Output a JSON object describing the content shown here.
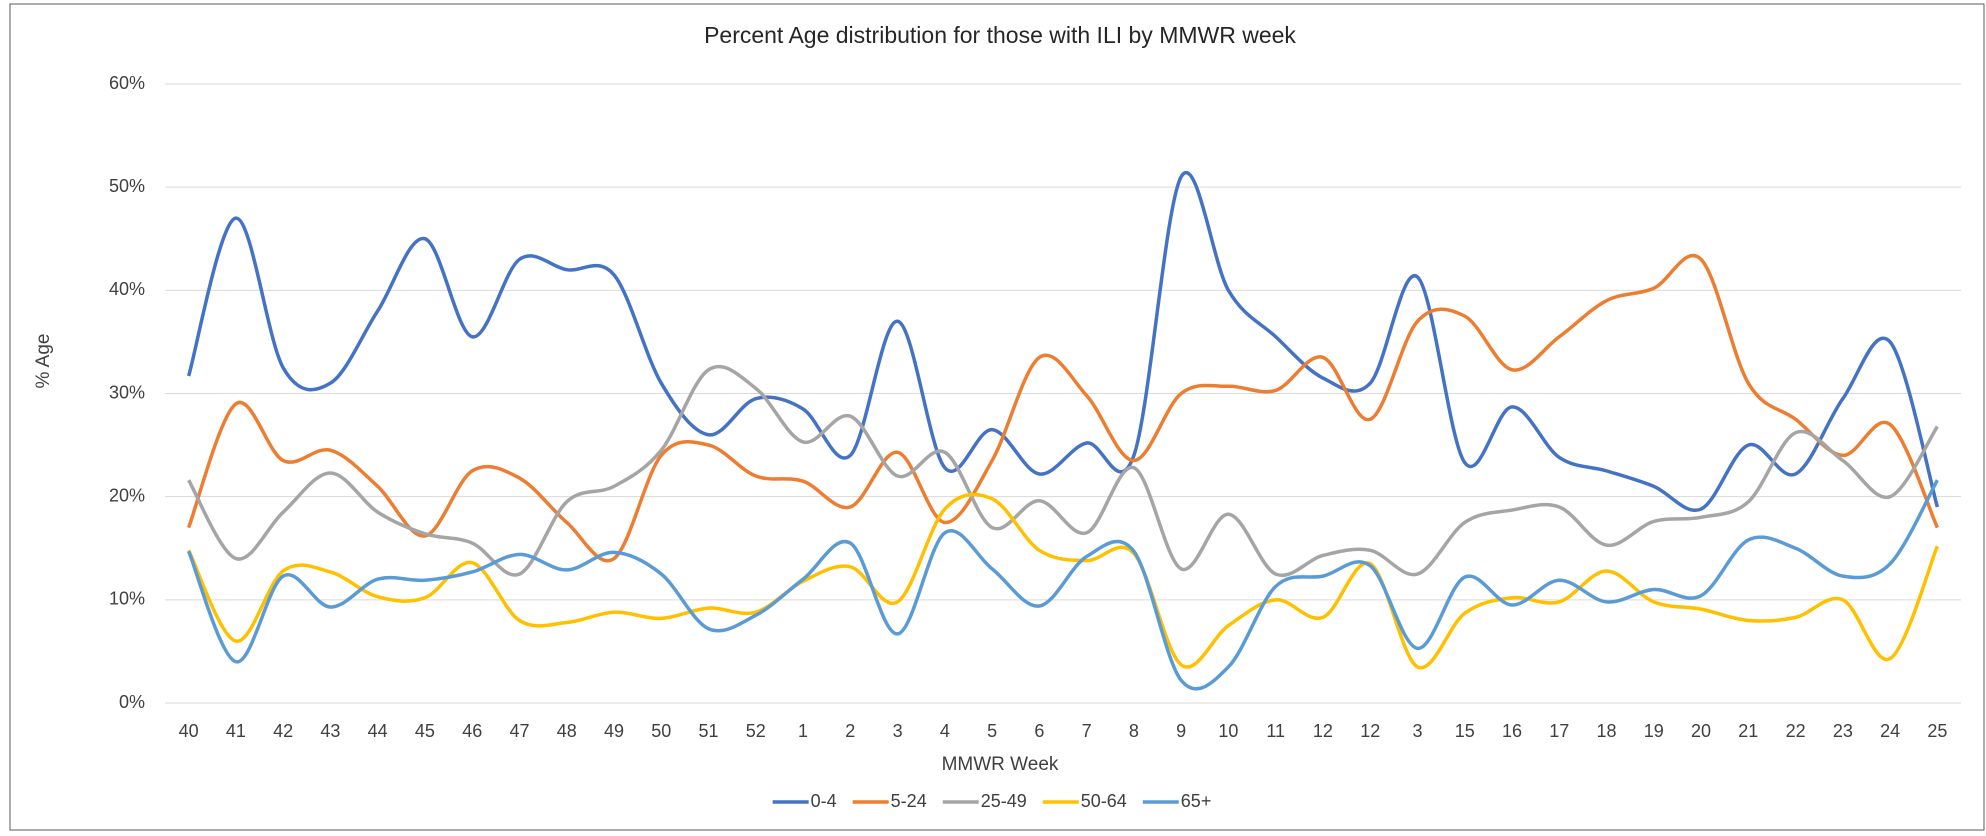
{
  "chart_data": {
    "type": "line",
    "title": "Percent Age distribution for those with ILI by MMWR week",
    "x_label": "MMWR Week",
    "y_label": "% Age",
    "categories": [
      "40",
      "41",
      "42",
      "43",
      "44",
      "45",
      "46",
      "47",
      "48",
      "49",
      "50",
      "51",
      "52",
      "1",
      "2",
      "3",
      "4",
      "5",
      "6",
      "7",
      "8",
      "9",
      "10",
      "11",
      "12",
      "12",
      "3",
      "15",
      "16",
      "17",
      "18",
      "19",
      "20",
      "21",
      "22",
      "23",
      "24",
      "25"
    ],
    "series": [
      {
        "name": "0-4",
        "color": "#4472c4",
        "values": [
          31.7,
          47,
          32.5,
          31,
          38,
          45,
          35.5,
          43,
          42,
          41.5,
          31,
          26,
          29.5,
          28.5,
          24,
          37,
          22.8,
          26.5,
          22.2,
          25.2,
          24,
          51,
          40,
          35.5,
          31.5,
          31,
          41.3,
          23.3,
          28.7,
          23.8,
          22.5,
          21,
          18.8,
          25,
          22.2,
          29.5,
          35,
          19
        ]
      },
      {
        "name": "5-24",
        "color": "#ed7d31",
        "values": [
          17,
          29,
          23.5,
          24.5,
          21,
          16.2,
          22.5,
          21.8,
          17.5,
          14,
          24,
          25,
          22,
          21.5,
          19,
          24.3,
          17.5,
          23.5,
          33.5,
          29.8,
          23.5,
          30,
          30.7,
          30.3,
          33.5,
          27.5,
          37,
          37.5,
          32.3,
          35.5,
          39,
          40.2,
          43,
          31,
          27.5,
          24,
          27,
          17
        ]
      },
      {
        "name": "25-49",
        "color": "#a5a5a5",
        "values": [
          21.6,
          14,
          18.5,
          22.3,
          18.5,
          16.4,
          15.5,
          12.5,
          19.5,
          21,
          24.5,
          32.3,
          30.5,
          25.3,
          27.8,
          22,
          24.3,
          17,
          19.6,
          16.5,
          22.8,
          13,
          18.3,
          12.5,
          14.3,
          14.8,
          12.5,
          17.5,
          18.7,
          19,
          15.3,
          17.6,
          18,
          19.5,
          26.2,
          23.5,
          20,
          26.8
        ]
      },
      {
        "name": "50-64",
        "color": "#ffc000",
        "values": [
          14.8,
          6,
          12.8,
          12.7,
          10.3,
          10.2,
          13.6,
          8,
          7.8,
          8.8,
          8.2,
          9.2,
          8.8,
          11.8,
          13.2,
          9.8,
          18.8,
          19.8,
          14.8,
          13.8,
          14.5,
          3.7,
          7.5,
          10,
          8.3,
          13.5,
          3.5,
          8.7,
          10.2,
          9.8,
          12.8,
          9.8,
          9.1,
          8,
          8.3,
          10,
          4.3,
          15.2
        ]
      },
      {
        "name": "65+",
        "color": "#5b9bd5",
        "values": [
          14.7,
          4,
          12.3,
          9.3,
          12,
          11.9,
          12.7,
          14.4,
          12.9,
          14.6,
          12.5,
          7.2,
          8.5,
          12,
          15.5,
          6.7,
          16.5,
          13,
          9.4,
          14.2,
          14.7,
          2.2,
          3.5,
          11.3,
          12.3,
          13.3,
          5.3,
          12.2,
          9.5,
          11.9,
          9.8,
          11,
          10.4,
          15.8,
          15,
          12.3,
          13.5,
          21.6
        ]
      }
    ],
    "ylim": [
      0,
      60
    ],
    "yticks": [
      {
        "value": 0,
        "label": "0%"
      },
      {
        "value": 10,
        "label": "10%"
      },
      {
        "value": 20,
        "label": "20%"
      },
      {
        "value": 30,
        "label": "30%"
      },
      {
        "value": 40,
        "label": "40%"
      },
      {
        "value": 50,
        "label": "50%"
      },
      {
        "value": 60,
        "label": "60%"
      }
    ],
    "grid": true,
    "legend": "bottom"
  }
}
